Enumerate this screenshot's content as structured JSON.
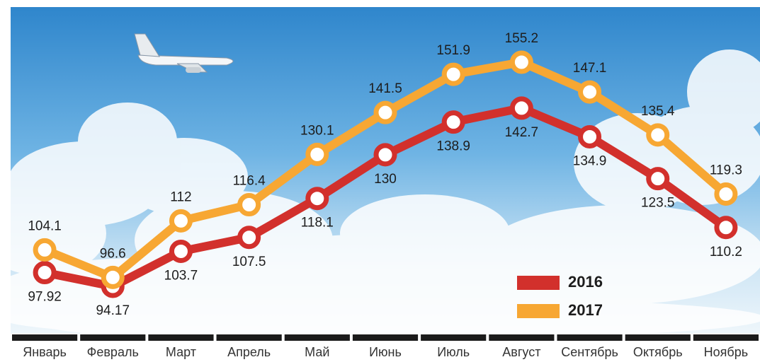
{
  "chart_data": {
    "type": "line",
    "categories": [
      "Январь",
      "Февраль",
      "Март",
      "Апрель",
      "Май",
      "Июнь",
      "Июль",
      "Август",
      "Сентябрь",
      "Октябрь",
      "Ноябрь"
    ],
    "series": [
      {
        "name": "2016",
        "color": "#d2302c",
        "values": [
          97.92,
          94.17,
          103.7,
          107.5,
          118.1,
          130,
          138.9,
          142.7,
          134.9,
          123.5,
          110.2
        ]
      },
      {
        "name": "2017",
        "color": "#f7a733",
        "values": [
          104.1,
          96.6,
          112,
          116.4,
          130.1,
          141.5,
          151.9,
          155.2,
          147.1,
          135.4,
          119.3
        ]
      }
    ],
    "legend": "lower right"
  }
}
